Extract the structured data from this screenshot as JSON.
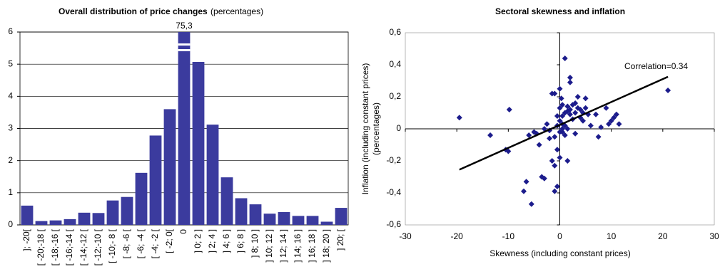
{
  "chart_data": [
    {
      "type": "bar",
      "title": "Overall distribution of price changes",
      "subtitle": "(percentages)",
      "categories": [
        "]; -20[",
        "[ -20;-18 [",
        "[ -18;-16 [",
        "[ -16;-14 [",
        "[ -14;-12 [",
        "[ -12;-10 [",
        "[ -10;- 8 [",
        "[ -8; -6 [",
        "[ -6; -4 [",
        "[ -4; -2 [",
        "[ -2; 0[",
        "0",
        "] 0; 2 ]",
        "] 2; 4 ]",
        "] 4; 6 ]",
        "] 6; 8 ]",
        "] 8; 10 ]",
        "] 10; 12 ]",
        "] 12; 14 ]",
        "] 14; 16 ]",
        "] 16; 18 ]",
        "] 18; 20 ]",
        "] 20; ["
      ],
      "values": [
        0.6,
        0.12,
        0.14,
        0.18,
        0.38,
        0.37,
        0.76,
        0.87,
        1.62,
        2.78,
        3.6,
        75.3,
        5.07,
        3.12,
        1.48,
        0.83,
        0.64,
        0.35,
        0.4,
        0.28,
        0.28,
        0.1,
        0.53
      ],
      "value_labels": [
        null,
        null,
        null,
        null,
        null,
        null,
        null,
        null,
        null,
        null,
        null,
        "75,3",
        null,
        null,
        null,
        null,
        null,
        null,
        null,
        null,
        null,
        null,
        null
      ],
      "color": "#3b3b9e",
      "ylim": [
        0,
        6
      ],
      "yticks": [
        0,
        1,
        2,
        3,
        4,
        5,
        6
      ],
      "grid": true
    },
    {
      "type": "scatter",
      "title": "Sectoral skewness and inflation",
      "xlabel": "Skewness (including constant prices)",
      "ylabel": [
        "Inflation (including constant prices)",
        "(percentages)"
      ],
      "annotation": "Correlation=0.34",
      "color": "#1c1c8c",
      "x": [
        -19.5,
        -13.5,
        -10.5,
        -10,
        -9.8,
        -7,
        -6.5,
        -6,
        -5.5,
        -5,
        -4.5,
        -4,
        -3.5,
        -3,
        -3,
        -2.5,
        -2,
        -2,
        -1.5,
        -1.5,
        -1,
        -1,
        -1,
        -1,
        -0.5,
        -0.5,
        -0.5,
        -0.5,
        0,
        0,
        0,
        0,
        0,
        0.3,
        0.5,
        0.5,
        0.5,
        0.5,
        1,
        1,
        1,
        1,
        1.5,
        1.5,
        1.5,
        2,
        2,
        2,
        2,
        2.5,
        2.5,
        3,
        3,
        3,
        3.5,
        3.5,
        4,
        4,
        4.5,
        4.5,
        5,
        5,
        5.5,
        6,
        7,
        7.5,
        8,
        9,
        9.5,
        10,
        10.5,
        11,
        11.5,
        21,
        1.5,
        0.5
      ],
      "y": [
        0.07,
        -0.04,
        -0.13,
        -0.14,
        0.12,
        -0.39,
        -0.33,
        -0.04,
        -0.47,
        -0.02,
        -0.03,
        -0.1,
        -0.3,
        -0.31,
        0,
        0.03,
        -0.01,
        -0.06,
        -0.2,
        0.22,
        0.22,
        -0.05,
        -0.23,
        -0.39,
        0.08,
        0.02,
        -0.13,
        -0.36,
        0.13,
        0.05,
        -0.02,
        -0.18,
        0.25,
        0.19,
        0.08,
        0.03,
        -0.02,
        0,
        0.44,
        0.02,
        0.1,
        -0.04,
        -0.2,
        0.11,
        0,
        0.32,
        0.29,
        0.12,
        0.09,
        0.06,
        0.15,
        0.1,
        0.16,
        -0.03,
        0.13,
        0.2,
        0.07,
        0.12,
        0.05,
        0.1,
        0.19,
        0.13,
        0.09,
        0.02,
        0.09,
        -0.05,
        0.01,
        0.13,
        0.03,
        0.05,
        0.07,
        0.09,
        0.03,
        0.24,
        0.14,
        0.15
      ],
      "trendline": {
        "x": [
          -19.5,
          21
        ],
        "y": [
          -0.255,
          0.325
        ]
      },
      "xlim": [
        -30,
        30
      ],
      "xticks": [
        -30,
        -20,
        -10,
        0,
        10,
        20,
        30
      ],
      "ylim": [
        -0.6,
        0.6
      ],
      "yticks": [
        {
          "value": -0.6,
          "label": "-0,6"
        },
        {
          "value": -0.4,
          "label": "-0,4"
        },
        {
          "value": -0.2,
          "label": "-0,2"
        },
        0,
        {
          "value": 0.2,
          "label": "0,2"
        },
        {
          "value": 0.4,
          "label": "0,4"
        },
        {
          "value": 0.6,
          "label": "0,6"
        }
      ]
    }
  ]
}
